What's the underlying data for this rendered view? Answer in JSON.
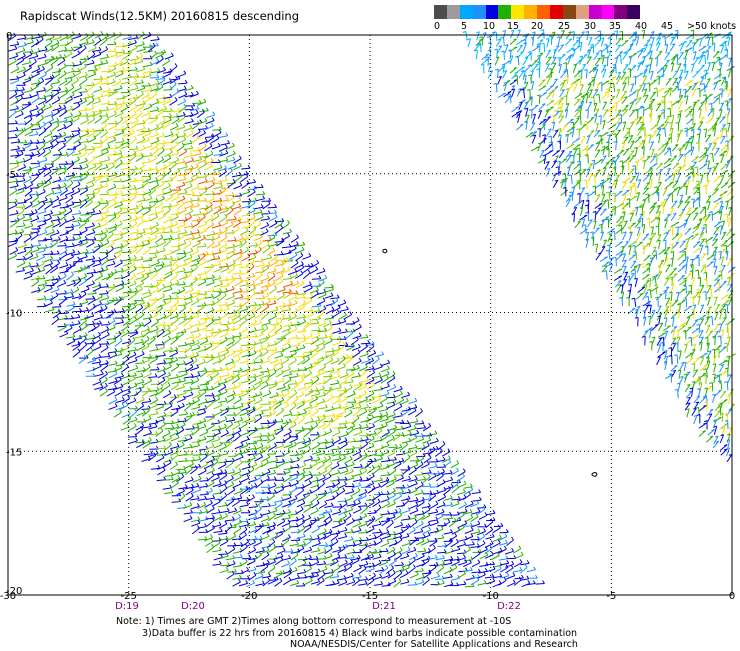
{
  "title": "Rapidscat Winds(12.5KM) 20160815 descending",
  "legend": {
    "colors": [
      "#4d4d4d",
      "#9c9c9c",
      "#00a8ff",
      "#1e90ff",
      "#0000e0",
      "#22b000",
      "#ffe600",
      "#ffb000",
      "#ff6000",
      "#e00000",
      "#8b4513",
      "#e0a080",
      "#cc00cc",
      "#ff00ff",
      "#800080",
      "#3a0060"
    ],
    "labels": [
      "0",
      "5",
      "10",
      "15",
      "20",
      "25",
      "30",
      "35",
      "40",
      "45",
      ">50 knots"
    ]
  },
  "axes": {
    "x_ticks": [
      "-30",
      "-25",
      "-20",
      "-15",
      "-10",
      "-5",
      "0"
    ],
    "y_ticks": [
      "0",
      "-5",
      "-10",
      "-15",
      "-20"
    ]
  },
  "time_labels": [
    "D:19",
    "D:20",
    "D:21",
    "D:22"
  ],
  "notes": [
    "Note: 1) Times are GMT 2)Times along bottom correspond to measurement at -10S",
    "3)Data buffer is 22 hrs from 20160815 4) Black wind barbs indicate possible contamination",
    "NOAA/NESDIS/Center for Satellite Applications and Research"
  ]
}
